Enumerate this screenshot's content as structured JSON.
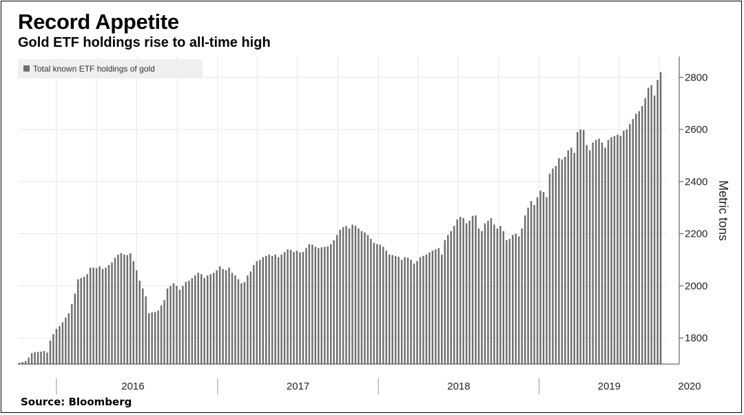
{
  "title": "Record Appetite",
  "subtitle": "Gold ETF holdings rise to all-time high",
  "source": "Source: Bloomberg",
  "colors": {
    "bar": "#6e6e6e",
    "grid": "#e6e6e6",
    "axis": "#444444",
    "legend_bg": "#efefef"
  },
  "chart_data": {
    "type": "bar",
    "title": "Record Appetite",
    "subtitle": "Gold ETF holdings rise to all-time high",
    "ylabel": "Metric tons",
    "xlabel": "",
    "ylim": [
      1700,
      2880
    ],
    "yticks": [
      1800,
      2000,
      2200,
      2400,
      2600,
      2800
    ],
    "xtick_labels": [
      "2016",
      "2017",
      "2018",
      "2019",
      "2020"
    ],
    "xtick_year_starts": [
      "2016-01-01",
      "2017-01-01",
      "2018-01-01",
      "2019-01-01",
      "2020-01-01"
    ],
    "x_start": "2015-10-09",
    "bar_interval_days": 7,
    "legend": {
      "entries": [
        "Total known ETF holdings of gold"
      ],
      "placement": "top-left"
    },
    "axis_side": "right",
    "grid": true,
    "series": [
      {
        "name": "Total known ETF holdings of gold",
        "values": [
          1705,
          1708,
          1712,
          1725,
          1742,
          1746,
          1747,
          1748,
          1750,
          1744,
          1790,
          1815,
          1835,
          1845,
          1860,
          1878,
          1895,
          1930,
          1970,
          2025,
          2030,
          2035,
          2045,
          2070,
          2070,
          2068,
          2075,
          2065,
          2070,
          2080,
          2090,
          2108,
          2120,
          2125,
          2120,
          2118,
          2125,
          2095,
          2060,
          2020,
          1990,
          1960,
          1895,
          1898,
          1900,
          1905,
          1925,
          1945,
          1990,
          2000,
          2010,
          2000,
          1985,
          2000,
          2015,
          2020,
          2030,
          2040,
          2050,
          2045,
          2030,
          2040,
          2045,
          2050,
          2060,
          2075,
          2065,
          2060,
          2070,
          2050,
          2040,
          2025,
          2010,
          2015,
          2040,
          2055,
          2080,
          2095,
          2100,
          2110,
          2115,
          2120,
          2115,
          2120,
          2110,
          2120,
          2130,
          2140,
          2138,
          2130,
          2135,
          2128,
          2130,
          2145,
          2160,
          2158,
          2150,
          2145,
          2148,
          2150,
          2152,
          2160,
          2175,
          2195,
          2215,
          2225,
          2230,
          2220,
          2235,
          2230,
          2220,
          2210,
          2205,
          2195,
          2180,
          2165,
          2160,
          2158,
          2150,
          2135,
          2120,
          2118,
          2115,
          2112,
          2100,
          2110,
          2108,
          2100,
          2085,
          2095,
          2110,
          2115,
          2120,
          2128,
          2135,
          2140,
          2145,
          2120,
          2175,
          2195,
          2210,
          2230,
          2255,
          2265,
          2260,
          2240,
          2250,
          2268,
          2270,
          2220,
          2210,
          2240,
          2250,
          2260,
          2235,
          2220,
          2230,
          2210,
          2175,
          2180,
          2195,
          2200,
          2190,
          2220,
          2270,
          2300,
          2325,
          2310,
          2340,
          2365,
          2360,
          2340,
          2430,
          2450,
          2460,
          2490,
          2485,
          2495,
          2520,
          2530,
          2510,
          2590,
          2600,
          2598,
          2540,
          2520,
          2550,
          2560,
          2565,
          2550,
          2530,
          2560,
          2570,
          2575,
          2580,
          2575,
          2595,
          2600,
          2620,
          2640,
          2660,
          2670,
          2690,
          2720,
          2760,
          2770,
          2730,
          2790,
          2820
        ]
      }
    ]
  }
}
